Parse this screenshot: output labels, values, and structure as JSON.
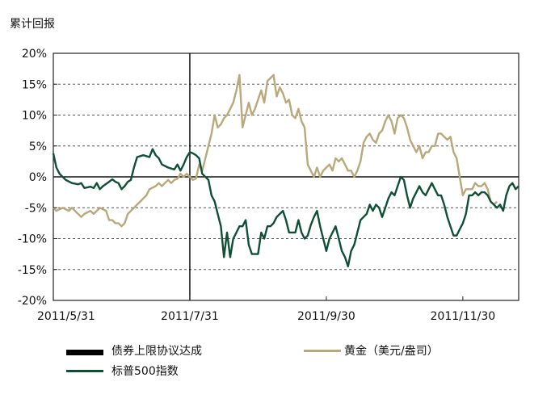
{
  "chart_data": {
    "type": "line",
    "ylabel": "累计回报",
    "ylim": [
      -20,
      20
    ],
    "yticks": [
      20,
      15,
      10,
      5,
      0,
      -5,
      -10,
      -15,
      -20
    ],
    "ytick_labels": [
      "20%",
      "15%",
      "10%",
      "5%",
      "0%",
      "-5%",
      "-10%",
      "-15%",
      "-20%"
    ],
    "x_tick_labels": [
      {
        "label": "2011/5/31",
        "index": 0
      },
      {
        "label": "2011/7/31",
        "index": 44
      },
      {
        "label": "2011/9/30",
        "index": 88
      },
      {
        "label": "2011/11/30",
        "index": 132
      }
    ],
    "grid": true,
    "x_count": 150,
    "event_marker": {
      "label": "债券上限协议达成",
      "index": 44,
      "color": "#000000"
    },
    "series": [
      {
        "name": "标普500指数",
        "color": "#0f4f36",
        "points": [
          [
            0,
            3.8
          ],
          [
            1,
            1.5
          ],
          [
            2,
            0.5
          ],
          [
            4,
            -0.5
          ],
          [
            6,
            -1
          ],
          [
            8,
            -1.2
          ],
          [
            9,
            -1
          ],
          [
            10,
            -1.8
          ],
          [
            12,
            -1.6
          ],
          [
            13,
            -1.8
          ],
          [
            14,
            -1
          ],
          [
            15,
            -2
          ],
          [
            16,
            -1.5
          ],
          [
            18,
            -0.8
          ],
          [
            19,
            -0.4
          ],
          [
            20,
            -0.8
          ],
          [
            21,
            -1
          ],
          [
            22,
            -2
          ],
          [
            23,
            -1.5
          ],
          [
            24,
            -0.8
          ],
          [
            25,
            -0.5
          ],
          [
            26,
            1.5
          ],
          [
            27,
            3.2
          ],
          [
            29,
            3.5
          ],
          [
            31,
            3.2
          ],
          [
            32,
            4.5
          ],
          [
            33,
            3.5
          ],
          [
            34,
            3
          ],
          [
            35,
            2
          ],
          [
            37,
            1.5
          ],
          [
            39,
            1.2
          ],
          [
            40,
            2
          ],
          [
            41,
            1
          ],
          [
            42,
            2
          ],
          [
            43,
            3.2
          ],
          [
            44,
            4
          ],
          [
            45,
            3.8
          ],
          [
            46,
            3.5
          ],
          [
            47,
            3
          ],
          [
            48,
            0.5
          ],
          [
            49,
            0
          ],
          [
            50,
            -0.5
          ],
          [
            51,
            -3
          ],
          [
            52,
            -4
          ],
          [
            53,
            -6
          ],
          [
            54,
            -8
          ],
          [
            55,
            -13
          ],
          [
            56,
            -9
          ],
          [
            57,
            -13
          ],
          [
            58,
            -10
          ],
          [
            59,
            -9
          ],
          [
            60,
            -8
          ],
          [
            61,
            -8
          ],
          [
            62,
            -7
          ],
          [
            63,
            -11
          ],
          [
            64,
            -12.5
          ],
          [
            65,
            -12.5
          ],
          [
            66,
            -12.5
          ],
          [
            67,
            -9
          ],
          [
            68,
            -10
          ],
          [
            69,
            -8
          ],
          [
            70,
            -8
          ],
          [
            71,
            -7.5
          ],
          [
            72,
            -6.5
          ],
          [
            73,
            -6
          ],
          [
            74,
            -5.5
          ],
          [
            75,
            -7
          ],
          [
            76,
            -9
          ],
          [
            77,
            -9
          ],
          [
            78,
            -9
          ],
          [
            79,
            -7
          ],
          [
            80,
            -9
          ],
          [
            81,
            -10
          ],
          [
            82,
            -9.5
          ],
          [
            83,
            -7.8
          ],
          [
            84,
            -6.5
          ],
          [
            85,
            -5.5
          ],
          [
            86,
            -8
          ],
          [
            87,
            -10
          ],
          [
            88,
            -12
          ],
          [
            89,
            -10
          ],
          [
            90,
            -9
          ],
          [
            91,
            -8
          ],
          [
            92,
            -10
          ],
          [
            93,
            -12
          ],
          [
            94,
            -13
          ],
          [
            95,
            -14.5
          ],
          [
            96,
            -12
          ],
          [
            97,
            -11
          ],
          [
            98,
            -9
          ],
          [
            99,
            -7
          ],
          [
            100,
            -6.5
          ],
          [
            101,
            -6
          ],
          [
            102,
            -4.5
          ],
          [
            103,
            -5.5
          ],
          [
            104,
            -4.5
          ],
          [
            105,
            -5
          ],
          [
            106,
            -6.5
          ],
          [
            107,
            -5
          ],
          [
            108,
            -3.5
          ],
          [
            109,
            -2.5
          ],
          [
            110,
            -3
          ],
          [
            111,
            -1.5
          ],
          [
            112,
            0
          ],
          [
            113,
            -0.5
          ],
          [
            114,
            -3
          ],
          [
            115,
            -5
          ],
          [
            116,
            -3.5
          ],
          [
            117,
            -2.5
          ],
          [
            118,
            -1.5
          ],
          [
            119,
            -2.5
          ],
          [
            120,
            -3
          ],
          [
            121,
            -2
          ],
          [
            122,
            -1
          ],
          [
            123,
            -2
          ],
          [
            124,
            -3
          ],
          [
            125,
            -3
          ],
          [
            126,
            -4.5
          ],
          [
            127,
            -6.5
          ],
          [
            128,
            -8
          ],
          [
            129,
            -9.5
          ],
          [
            130,
            -9.5
          ],
          [
            131,
            -8.5
          ],
          [
            132,
            -7.5
          ],
          [
            133,
            -6
          ],
          [
            134,
            -3
          ],
          [
            135,
            -3
          ],
          [
            136,
            -2.5
          ],
          [
            137,
            -3
          ],
          [
            138,
            -2.5
          ],
          [
            139,
            -2.5
          ],
          [
            140,
            -3
          ],
          [
            141,
            -4
          ],
          [
            142,
            -4.5
          ],
          [
            143,
            -5
          ],
          [
            144,
            -4.5
          ],
          [
            145,
            -5.5
          ],
          [
            146,
            -3
          ],
          [
            147,
            -1.5
          ],
          [
            148,
            -1
          ],
          [
            149,
            -2
          ],
          [
            150,
            -1.5
          ]
        ]
      },
      {
        "name": "黄金（美元/盎司）",
        "color": "#b8a87a",
        "points": [
          [
            0,
            -5
          ],
          [
            1,
            -5.5
          ],
          [
            3,
            -5
          ],
          [
            5,
            -5.5
          ],
          [
            6,
            -5
          ],
          [
            8,
            -6
          ],
          [
            9,
            -6.5
          ],
          [
            10,
            -6
          ],
          [
            12,
            -5.5
          ],
          [
            13,
            -6
          ],
          [
            14,
            -5.5
          ],
          [
            15,
            -5
          ],
          [
            17,
            -5.5
          ],
          [
            18,
            -7
          ],
          [
            19,
            -7
          ],
          [
            20,
            -7.5
          ],
          [
            21,
            -7.5
          ],
          [
            22,
            -8
          ],
          [
            23,
            -7.5
          ],
          [
            24,
            -6
          ],
          [
            25,
            -5.5
          ],
          [
            26,
            -5
          ],
          [
            28,
            -4
          ],
          [
            30,
            -3
          ],
          [
            31,
            -2
          ],
          [
            33,
            -1.5
          ],
          [
            34,
            -1
          ],
          [
            35,
            -1.5
          ],
          [
            36,
            -1
          ],
          [
            37,
            -0.5
          ],
          [
            38,
            -1
          ],
          [
            39,
            -0.5
          ],
          [
            40,
            -0.3
          ],
          [
            41,
            0.5
          ],
          [
            42,
            0
          ],
          [
            43,
            0.5
          ],
          [
            44,
            0
          ],
          [
            45,
            -0.5
          ],
          [
            46,
            -0.3
          ],
          [
            47,
            2
          ],
          [
            48,
            1
          ],
          [
            49,
            3
          ],
          [
            50,
            5
          ],
          [
            51,
            7
          ],
          [
            52,
            10
          ],
          [
            53,
            8
          ],
          [
            54,
            8.5
          ],
          [
            55,
            9.5
          ],
          [
            56,
            10
          ],
          [
            57,
            11
          ],
          [
            58,
            12
          ],
          [
            59,
            14
          ],
          [
            60,
            16.5
          ],
          [
            61,
            8
          ],
          [
            62,
            10
          ],
          [
            63,
            12
          ],
          [
            64,
            10
          ],
          [
            65,
            11
          ],
          [
            66,
            12.5
          ],
          [
            67,
            14
          ],
          [
            68,
            12
          ],
          [
            69,
            15.5
          ],
          [
            70,
            16
          ],
          [
            71,
            16.5
          ],
          [
            72,
            13
          ],
          [
            73,
            14.5
          ],
          [
            74,
            13.5
          ],
          [
            75,
            12
          ],
          [
            76,
            12.5
          ],
          [
            77,
            10
          ],
          [
            78,
            9.5
          ],
          [
            79,
            11
          ],
          [
            80,
            9
          ],
          [
            81,
            8
          ],
          [
            82,
            2
          ],
          [
            83,
            1
          ],
          [
            84,
            0
          ],
          [
            85,
            1.5
          ],
          [
            86,
            0
          ],
          [
            87,
            1
          ],
          [
            88,
            1.5
          ],
          [
            89,
            2
          ],
          [
            90,
            1
          ],
          [
            91,
            3
          ],
          [
            92,
            2.5
          ],
          [
            93,
            3
          ],
          [
            94,
            2
          ],
          [
            95,
            1
          ],
          [
            96,
            1
          ],
          [
            97,
            0
          ],
          [
            98,
            1
          ],
          [
            99,
            2.5
          ],
          [
            100,
            5.5
          ],
          [
            101,
            6.5
          ],
          [
            102,
            7
          ],
          [
            103,
            6
          ],
          [
            104,
            5.5
          ],
          [
            105,
            7
          ],
          [
            106,
            7.5
          ],
          [
            107,
            9
          ],
          [
            108,
            10
          ],
          [
            109,
            9
          ],
          [
            110,
            7
          ],
          [
            111,
            9.5
          ],
          [
            112,
            10
          ],
          [
            113,
            9.5
          ],
          [
            114,
            8
          ],
          [
            115,
            6
          ],
          [
            116,
            5
          ],
          [
            117,
            4
          ],
          [
            118,
            5
          ],
          [
            119,
            3
          ],
          [
            120,
            4
          ],
          [
            121,
            4
          ],
          [
            122,
            5
          ],
          [
            123,
            5
          ],
          [
            124,
            7
          ],
          [
            125,
            7
          ],
          [
            126,
            6.5
          ],
          [
            127,
            6
          ],
          [
            128,
            6.5
          ],
          [
            129,
            4
          ],
          [
            130,
            3
          ],
          [
            131,
            0
          ],
          [
            132,
            -3
          ],
          [
            133,
            -2
          ],
          [
            134,
            -2
          ],
          [
            135,
            -2
          ],
          [
            136,
            -1
          ],
          [
            137,
            -1.5
          ],
          [
            138,
            -1.5
          ],
          [
            139,
            -1
          ],
          [
            140,
            -2
          ],
          [
            141,
            -4
          ],
          [
            142,
            -4.5
          ],
          [
            143,
            -4
          ]
        ]
      }
    ],
    "legend": {
      "position": "bottom",
      "entries": [
        {
          "label": "债券上限协议达成",
          "color": "#000000"
        },
        {
          "label": "黄金（美元/盎司）",
          "color": "#b8a87a"
        },
        {
          "label": "标普500指数",
          "color": "#0f4f36"
        }
      ]
    }
  }
}
